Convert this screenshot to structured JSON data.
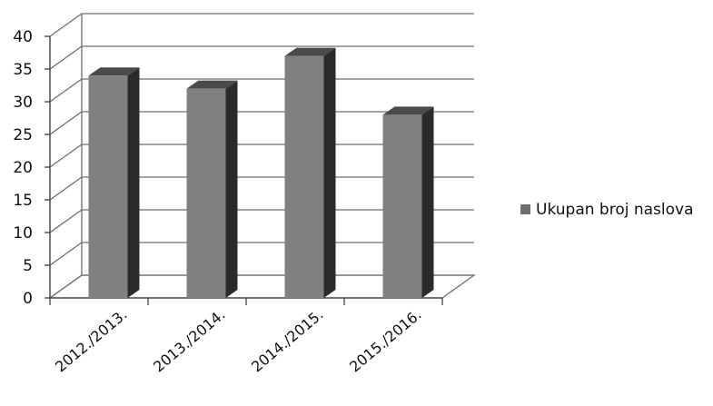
{
  "chart_data": {
    "type": "bar",
    "title": "",
    "xlabel": "",
    "ylabel": "",
    "categories": [
      "2012./2013.",
      "2013./2014.",
      "2014./2015.",
      "2015./2016."
    ],
    "series": [
      {
        "name": "Ukupan broj naslova",
        "values": [
          34,
          32,
          37,
          28
        ]
      }
    ],
    "ylim": [
      0,
      40
    ],
    "yticks": [
      0,
      5,
      10,
      15,
      20,
      25,
      30,
      35,
      40
    ],
    "grid": true,
    "legend_position": "right",
    "colors": {
      "bar_front": "#808080",
      "bar_side": "#2b2b2b",
      "bar_top": "#4a4a4a",
      "grid": "#6e6e6e",
      "legend_swatch": "#6f6f6f"
    }
  }
}
